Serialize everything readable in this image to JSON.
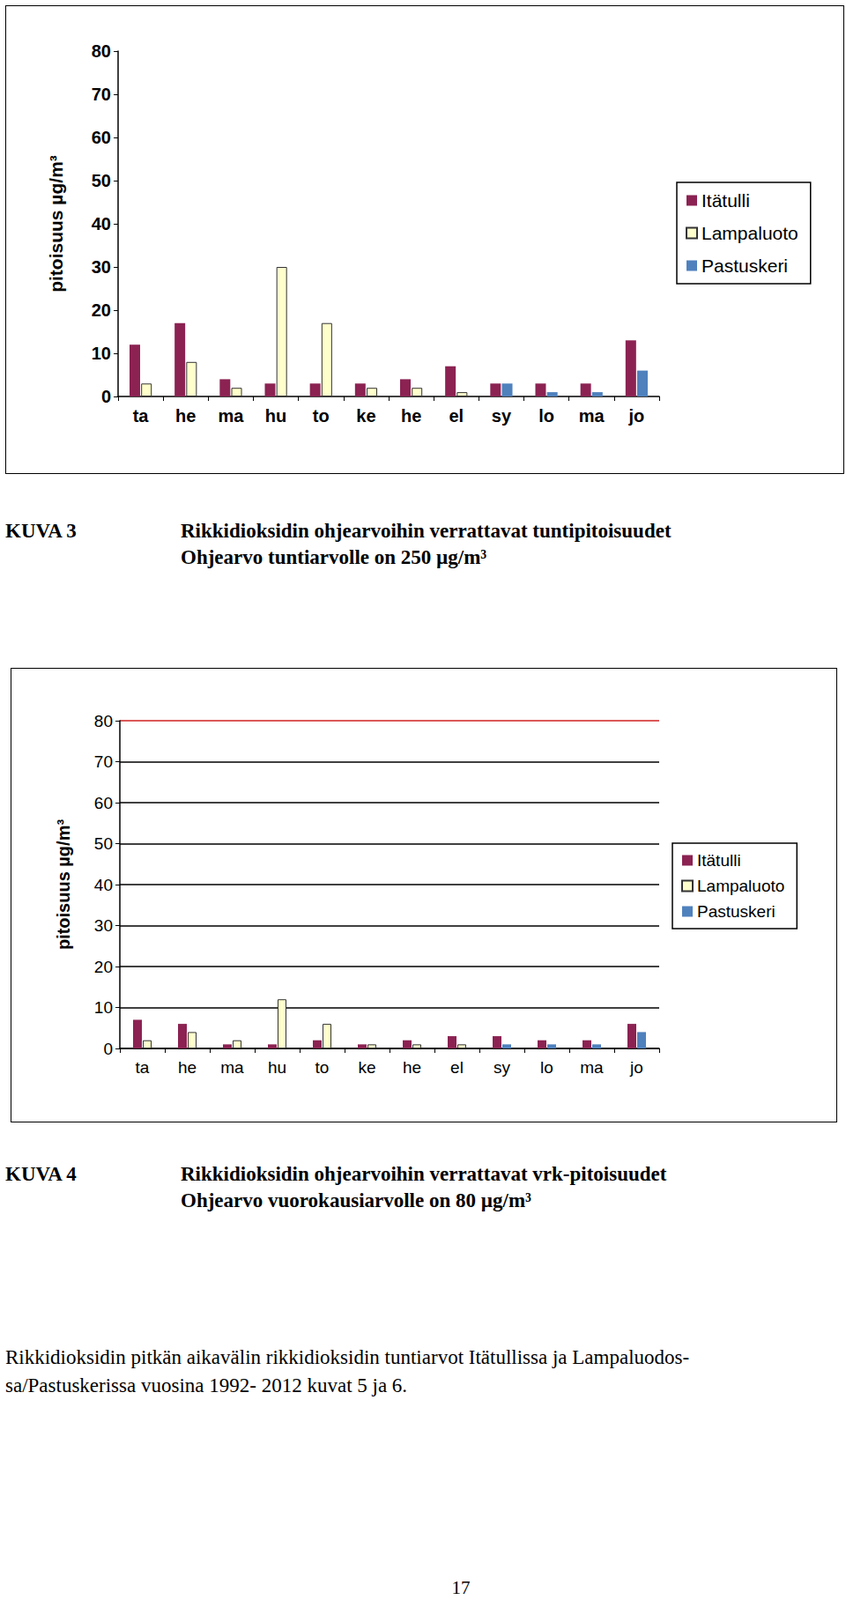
{
  "chart_data": [
    {
      "type": "bar",
      "ylabel": "pitoisuus µg/m³",
      "categories": [
        "ta",
        "he",
        "ma",
        "hu",
        "to",
        "ke",
        "he",
        "el",
        "sy",
        "lo",
        "ma",
        "jo"
      ],
      "series": [
        {
          "name": "Itätulli",
          "color": "#8b2252",
          "values": [
            12,
            17,
            4,
            3,
            3,
            3,
            4,
            7,
            3,
            3,
            3,
            13
          ]
        },
        {
          "name": "Lampaluoto",
          "color": "#ffffcc",
          "values": [
            3,
            8,
            2,
            30,
            17,
            2,
            2,
            1,
            null,
            null,
            null,
            null
          ]
        },
        {
          "name": "Pastuskeri",
          "color": "#4f81bd",
          "values": [
            null,
            null,
            null,
            null,
            null,
            null,
            null,
            null,
            3,
            1,
            1,
            6
          ]
        }
      ],
      "ylim": [
        0,
        80
      ],
      "yticks": [
        0,
        10,
        20,
        30,
        40,
        50,
        60,
        70,
        80
      ],
      "grid": false,
      "legend": "right"
    },
    {
      "type": "bar",
      "ylabel": "pitoisuus µg/m³",
      "categories": [
        "ta",
        "he",
        "ma",
        "hu",
        "to",
        "ke",
        "he",
        "el",
        "sy",
        "lo",
        "ma",
        "jo"
      ],
      "series": [
        {
          "name": "Itätulli",
          "color": "#8b2252",
          "values": [
            7,
            6,
            1,
            1,
            2,
            1,
            2,
            3,
            3,
            2,
            2,
            6
          ]
        },
        {
          "name": "Lampaluoto",
          "color": "#ffffcc",
          "values": [
            2,
            4,
            2,
            12,
            6,
            1,
            1,
            1,
            null,
            null,
            null,
            null
          ]
        },
        {
          "name": "Pastuskeri",
          "color": "#4f81bd",
          "values": [
            null,
            null,
            null,
            null,
            null,
            null,
            null,
            null,
            1,
            1,
            1,
            4
          ]
        }
      ],
      "ylim": [
        0,
        80
      ],
      "yticks": [
        0,
        10,
        20,
        30,
        40,
        50,
        60,
        70,
        80
      ],
      "grid": true,
      "legend": "right"
    }
  ],
  "captions": [
    {
      "label": "KUVA 3",
      "lines": [
        "Rikkidioksidin ohjearvoihin verrattavat tuntipitoisuudet",
        "Ohjearvo tuntiarvolle on 250 µg/m³"
      ]
    },
    {
      "label": "KUVA 4",
      "lines": [
        "Rikkidioksidin ohjearvoihin verrattavat vrk-pitoisuudet",
        "Ohjearvo vuorokausiarvolle on 80 µg/m³"
      ]
    }
  ],
  "text": [
    "Rikkidioksidin pitkän aikavälin rikkidioksidin tuntiarvot Itätullissa ja Lampaluodos-",
    "sa/Pastuskerissa vuosina 1992- 2012 kuvat 5 ja 6."
  ],
  "page_number": "17"
}
